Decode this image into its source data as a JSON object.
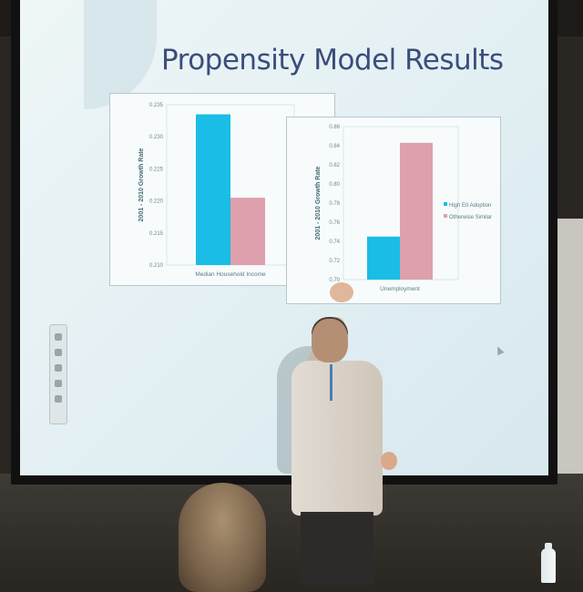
{
  "slide": {
    "title": "Propensity Model Results"
  },
  "chart_data": [
    {
      "type": "bar",
      "categories": [
        "Median Household Income"
      ],
      "series": [
        {
          "name": "",
          "color": "#19bde5",
          "values": [
            0.2335
          ]
        },
        {
          "name": "",
          "color": "#dea0ad",
          "values": [
            0.2205
          ]
        }
      ],
      "ylabel": "2001 - 2010 Growth Rate",
      "ylim": [
        0.21,
        0.235
      ],
      "yticks": [
        "0.235",
        "0.230",
        "0.225",
        "0.220",
        "0.215",
        "0.210"
      ],
      "legend": "right (cut off)"
    },
    {
      "type": "bar",
      "categories": [
        "Unemployment"
      ],
      "series": [
        {
          "name": "High EII Adoption",
          "color": "#19bde5",
          "values": [
            0.745
          ]
        },
        {
          "name": "Otherwise Similar",
          "color": "#dea0ad",
          "values": [
            0.843
          ]
        }
      ],
      "ylabel": "2001 - 2010 Growth Rate",
      "ylim": [
        0.7,
        0.86
      ],
      "yticks": [
        "0.86",
        "0.84",
        "0.82",
        "0.80",
        "0.78",
        "0.76",
        "0.74",
        "0.72",
        "0.70"
      ],
      "legend": "right"
    }
  ]
}
